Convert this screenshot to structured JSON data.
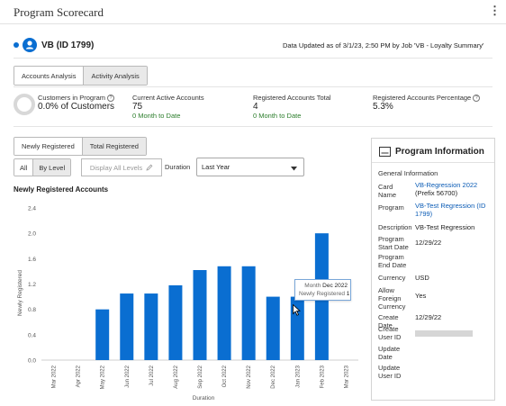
{
  "app": {
    "title": "Program Scorecard"
  },
  "program": {
    "name": "VB (ID 1799)",
    "updated": "Data Updated as of 3/1/23, 2:50 PM by Job 'VB - Loyalty Summary'"
  },
  "tabs": [
    {
      "label": "Accounts Analysis",
      "selected": true
    },
    {
      "label": "Activity Analysis",
      "selected": false
    }
  ],
  "metrics": [
    {
      "label": "Customers in Program",
      "value": "0.0% of Customers",
      "delta": ""
    },
    {
      "label": "Current Active Accounts",
      "value": "75",
      "delta": "0 Month to Date"
    },
    {
      "label": "Registered Accounts Total",
      "value": "4",
      "delta": "0 Month to Date"
    },
    {
      "label": "Registered Accounts Percentage",
      "value": "5.3%",
      "delta": ""
    }
  ],
  "view_tabs": [
    {
      "label": "Newly Registered",
      "selected": true
    },
    {
      "label": "Total Registered",
      "selected": false
    }
  ],
  "level_toggle": [
    {
      "label": "All",
      "selected": true
    },
    {
      "label": "By Level",
      "selected": false
    }
  ],
  "display_all_levels": "Display All Levels",
  "duration": {
    "label": "Duration",
    "value": "Last Year"
  },
  "icons": {
    "avatar": "person-icon",
    "pencil": "pencil-icon",
    "caret": "caret-down-icon",
    "panel": "panel-icon",
    "menu": "kebab-menu-icon",
    "cursor": "mouse-pointer-icon"
  },
  "colors": {
    "accent": "#0a6ed1",
    "bar": "#0a6ed1",
    "positive": "#2b7d2b",
    "link": "#0a5bb5"
  },
  "chart_data": {
    "type": "bar",
    "title": "Newly Registered Accounts",
    "xlabel": "Duration",
    "ylabel": "Newly Registered",
    "categories": [
      "Mar 2022",
      "Apr 2022",
      "May 2022",
      "Jun 2022",
      "Jul 2022",
      "Aug 2022",
      "Sep 2022",
      "Oct 2022",
      "Nov 2022",
      "Dec 2022",
      "Jan 2023",
      "Feb 2023",
      "Mar 2023"
    ],
    "values": [
      0,
      0,
      0.8,
      1.05,
      1.05,
      1.18,
      1.42,
      1.48,
      1.48,
      1.0,
      1.0,
      2.0,
      0
    ],
    "yticks": [
      "0.0",
      "0.4",
      "0.8",
      "1.2",
      "1.6",
      "2.0",
      "2.4"
    ],
    "ylim": [
      0,
      2.4
    ],
    "grid": false,
    "tooltip": {
      "line1_label": "Month",
      "line1_value": "Dec 2022",
      "line2_label": "Newly Registered",
      "line2_value": "1"
    }
  },
  "info_panel": {
    "title": "Program Information",
    "section": "General Information",
    "fields": [
      {
        "label": "Card Name",
        "value": "VB-Regression 2022",
        "value2": "(Prefix 56700)",
        "link": true
      },
      {
        "label": "Program",
        "value": "VB-Test Regression (ID 1799)",
        "value2": "",
        "link": true
      },
      {
        "label": "Description",
        "value": "VB-Test Regression",
        "value2": "",
        "link": false
      },
      {
        "label": "Program Start Date",
        "value": "12/29/22",
        "value2": "",
        "link": false
      },
      {
        "label": "Program End Date",
        "value": "",
        "value2": "",
        "link": false
      },
      {
        "label": "Currency",
        "value": "USD",
        "value2": "",
        "link": false
      },
      {
        "label": "Allow Foreign Currency",
        "value": "Yes",
        "value2": "",
        "link": false
      },
      {
        "label": "Create Date",
        "value": "12/29/22",
        "value2": "",
        "link": false
      },
      {
        "label": "Create User ID",
        "value": "",
        "value2": "",
        "link": false
      },
      {
        "label": "Update Date",
        "value": "",
        "value2": "",
        "link": false
      },
      {
        "label": "Update User ID",
        "value": "",
        "value2": "",
        "link": false
      }
    ]
  }
}
